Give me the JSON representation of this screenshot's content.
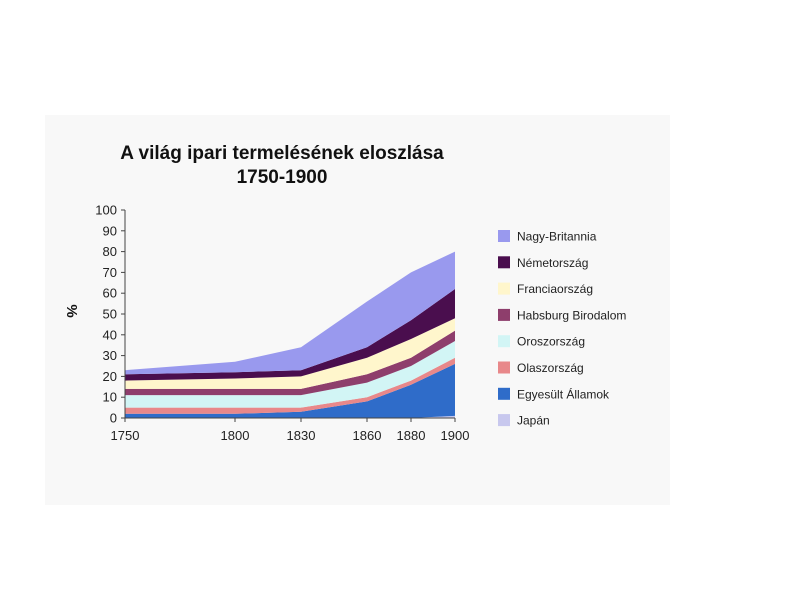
{
  "chart_data": {
    "type": "area",
    "stacked": true,
    "title": "A világ ipari termelésének eloszlása",
    "subtitle": "1750-1900",
    "xlabel": "",
    "ylabel": "%",
    "ylim": [
      0,
      100
    ],
    "yticks": [
      0,
      10,
      20,
      30,
      40,
      50,
      60,
      70,
      80,
      90,
      100
    ],
    "x": [
      1750,
      1800,
      1830,
      1860,
      1880,
      1900
    ],
    "x_tick_labels": [
      "1750",
      "1800",
      "1830",
      "1860",
      "1880",
      "1900"
    ],
    "grid": false,
    "legend_position": "right",
    "series": [
      {
        "name": "Japán",
        "color": "#c8c8ee",
        "values": [
          0,
          0,
          0,
          0,
          0,
          1
        ]
      },
      {
        "name": "Egyesült Államok",
        "color": "#2f6cc9",
        "values": [
          2,
          2,
          3,
          8,
          16,
          25
        ]
      },
      {
        "name": "Olaszország",
        "color": "#e8888a",
        "values": [
          3,
          3,
          2,
          2,
          2,
          3
        ]
      },
      {
        "name": "Oroszország",
        "color": "#d2f5f5",
        "values": [
          6,
          6,
          6,
          7,
          7,
          8
        ]
      },
      {
        "name": "Habsburg Birodalom",
        "color": "#8e3e6c",
        "values": [
          3,
          3,
          3,
          4,
          4,
          5
        ]
      },
      {
        "name": "Franciaország",
        "color": "#fff6cc",
        "values": [
          4,
          5,
          6,
          8,
          9,
          6
        ]
      },
      {
        "name": "Németország",
        "color": "#4a0e4e",
        "values": [
          3,
          3,
          3,
          5,
          9,
          14
        ]
      },
      {
        "name": "Nagy-Britannia",
        "color": "#9999ee",
        "values": [
          2,
          5,
          11,
          22,
          23,
          18
        ]
      }
    ]
  }
}
